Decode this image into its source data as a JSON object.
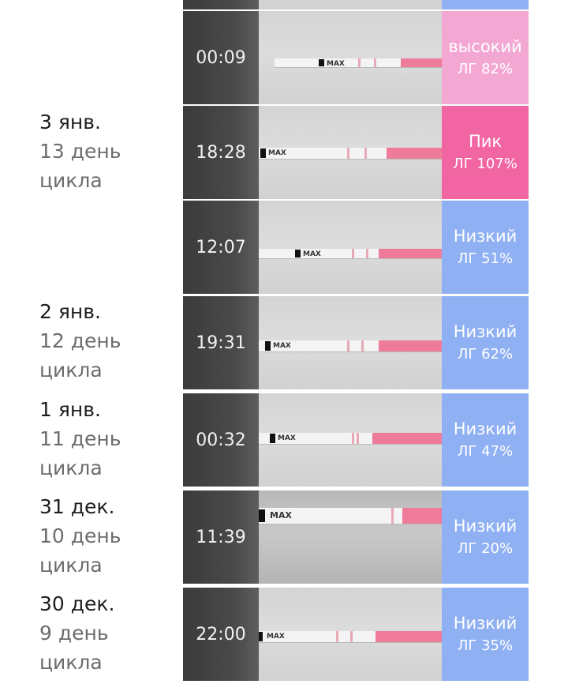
{
  "colors": {
    "high": "#f3a8d3",
    "peak": "#f265a3",
    "low": "#8fb0f2",
    "time_bg": "#444444"
  },
  "days": [
    {
      "date": "3 янв.",
      "cycle": "13 день цикла"
    },
    {
      "date": "2 янв.",
      "cycle": "12 день цикла"
    },
    {
      "date": "1 янв.",
      "cycle": "11 день цикла"
    },
    {
      "date": "31 дек.",
      "cycle": "10 день цикла"
    },
    {
      "date": "30 дек.",
      "cycle": "9 день цикла"
    }
  ],
  "tests": [
    {
      "time": "00:09",
      "level": "высокий",
      "percent": "ЛГ 82%",
      "status": "high",
      "strip_text": "MAX",
      "lh_value": 82
    },
    {
      "time": "18:28",
      "level": "Пик",
      "percent": "ЛГ 107%",
      "status": "peak",
      "strip_text": "MAX",
      "lh_value": 107
    },
    {
      "time": "12:07",
      "level": "Низкий",
      "percent": "ЛГ 51%",
      "status": "low",
      "strip_text": "MAX",
      "lh_value": 51
    },
    {
      "time": "19:31",
      "level": "Низкий",
      "percent": "ЛГ 62%",
      "status": "low",
      "strip_text": "MAX",
      "lh_value": 62
    },
    {
      "time": "00:32",
      "level": "Низкий",
      "percent": "ЛГ 47%",
      "status": "low",
      "strip_text": "MAX",
      "lh_value": 47
    },
    {
      "time": "11:39",
      "level": "Низкий",
      "percent": "ЛГ 20%",
      "status": "low",
      "strip_text": "MAX",
      "lh_value": 20
    },
    {
      "time": "22:00",
      "level": "Низкий",
      "percent": "ЛГ 35%",
      "status": "low",
      "strip_text": "MAX",
      "lh_value": 35
    }
  ]
}
